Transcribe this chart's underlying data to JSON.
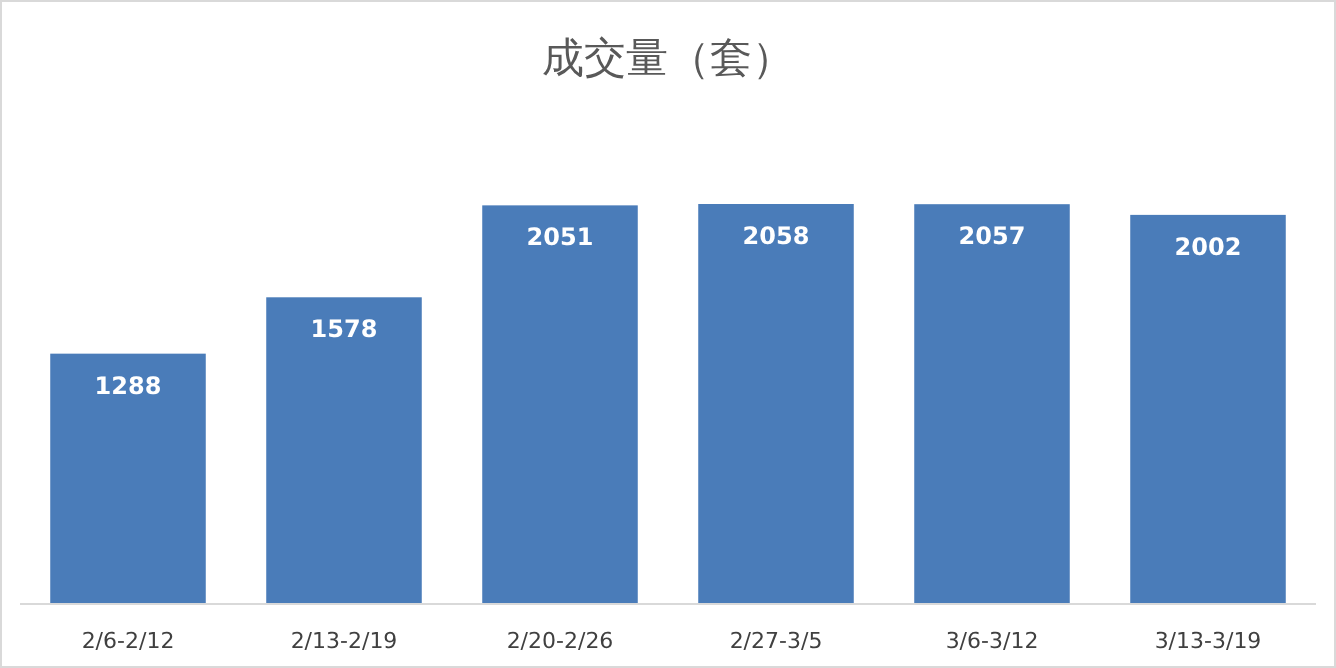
{
  "chart_data": {
    "type": "bar",
    "title": "成交量（套）",
    "categories": [
      "2/6-2/12",
      "2/13-2/19",
      "2/20-2/26",
      "2/27-3/5",
      "3/6-3/12",
      "3/13-3/19"
    ],
    "values": [
      1288,
      1578,
      2051,
      2058,
      2057,
      2002
    ],
    "color": "#4a7cb9",
    "data_labels": true,
    "grid": false
  }
}
